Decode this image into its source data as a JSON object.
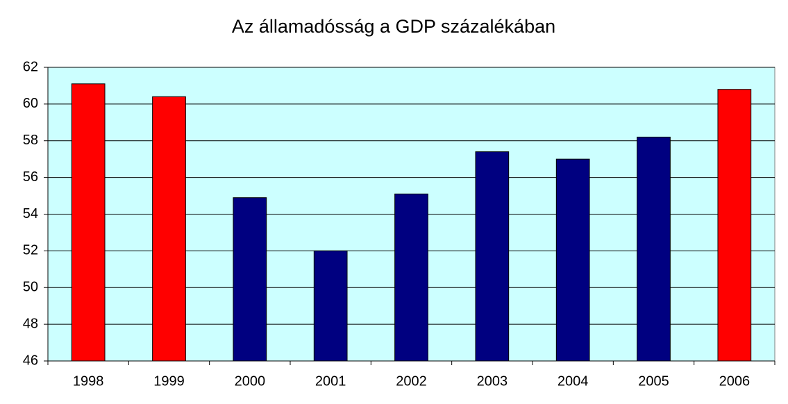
{
  "chart_data": {
    "type": "bar",
    "title": "Az államadósság a GDP százalékában",
    "categories": [
      "1998",
      "1999",
      "2000",
      "2001",
      "2002",
      "2003",
      "2004",
      "2005",
      "2006"
    ],
    "values": [
      61.1,
      60.4,
      54.9,
      52.0,
      55.1,
      57.4,
      57.0,
      58.2,
      60.8
    ],
    "colors": [
      "#ff0000",
      "#ff0000",
      "#000080",
      "#000080",
      "#000080",
      "#000080",
      "#000080",
      "#000080",
      "#ff0000"
    ],
    "ylim": [
      46,
      62
    ],
    "yticks": [
      46,
      48,
      50,
      52,
      54,
      56,
      58,
      60,
      62
    ],
    "grid": true,
    "background": "#ccffff"
  }
}
